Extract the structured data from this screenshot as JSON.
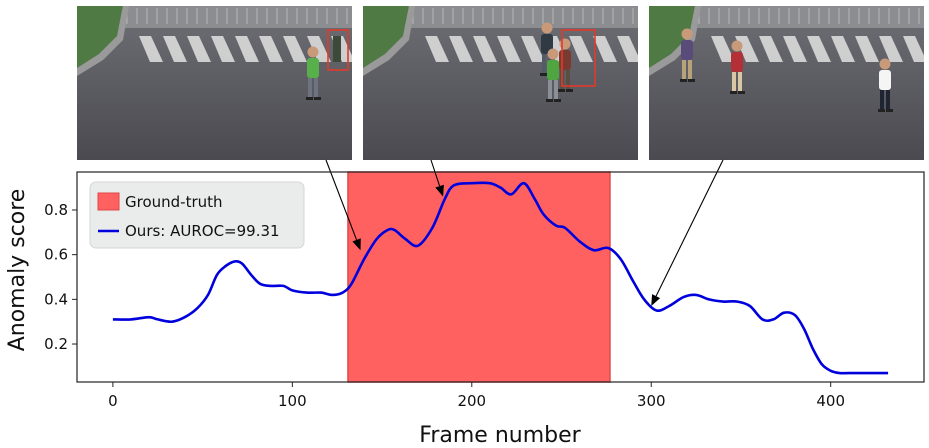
{
  "frames": [
    {
      "name": "frame-1",
      "persons": 1,
      "bbox": true
    },
    {
      "name": "frame-2",
      "persons": 3,
      "bbox": true
    },
    {
      "name": "frame-3",
      "persons": 3,
      "bbox": false
    }
  ],
  "colors": {
    "ground_truth": "#ff6161",
    "line": "#0000dd",
    "bbox": "#e23a2a",
    "road": "#58585e"
  },
  "chart_data": {
    "type": "line",
    "xlabel": "Frame number",
    "ylabel": "Anomaly score",
    "xlim": [
      -20,
      452
    ],
    "ylim": [
      0.03,
      0.97
    ],
    "xticks": [
      0,
      100,
      200,
      300,
      400
    ],
    "yticks": [
      0.2,
      0.4,
      0.6,
      0.8
    ],
    "ground_truth": {
      "name": "Ground-truth",
      "start": 131,
      "end": 277
    },
    "legend_position": "top-left",
    "series": [
      {
        "name": "Ours: AUROC=99.31",
        "x": [
          0,
          10,
          20,
          25,
          33,
          40,
          47,
          53,
          58,
          63,
          68,
          72,
          77,
          82,
          88,
          95,
          100,
          108,
          116,
          122,
          128,
          133,
          140,
          147,
          153,
          157,
          163,
          170,
          178,
          185,
          190,
          200,
          210,
          216,
          222,
          229,
          235,
          240,
          247,
          252,
          260,
          268,
          276,
          283,
          290,
          296,
          303,
          310,
          318,
          325,
          332,
          340,
          348,
          355,
          362,
          368,
          374,
          380,
          385,
          390,
          395,
          400,
          405,
          410,
          420,
          432
        ],
        "y": [
          0.31,
          0.31,
          0.32,
          0.31,
          0.3,
          0.32,
          0.36,
          0.42,
          0.51,
          0.55,
          0.57,
          0.56,
          0.51,
          0.47,
          0.46,
          0.46,
          0.44,
          0.43,
          0.43,
          0.42,
          0.43,
          0.47,
          0.58,
          0.67,
          0.71,
          0.71,
          0.67,
          0.64,
          0.72,
          0.85,
          0.91,
          0.92,
          0.92,
          0.9,
          0.87,
          0.92,
          0.85,
          0.78,
          0.73,
          0.72,
          0.66,
          0.62,
          0.63,
          0.58,
          0.48,
          0.4,
          0.35,
          0.37,
          0.41,
          0.42,
          0.4,
          0.39,
          0.39,
          0.37,
          0.31,
          0.31,
          0.34,
          0.33,
          0.27,
          0.18,
          0.11,
          0.08,
          0.07,
          0.07,
          0.07,
          0.07
        ]
      }
    ],
    "annotations": [
      {
        "from_frame": 1,
        "to": [
          138,
          0.62
        ]
      },
      {
        "from_frame": 2,
        "to": [
          184,
          0.86
        ]
      },
      {
        "from_frame": 3,
        "to": [
          300,
          0.37
        ]
      }
    ]
  }
}
